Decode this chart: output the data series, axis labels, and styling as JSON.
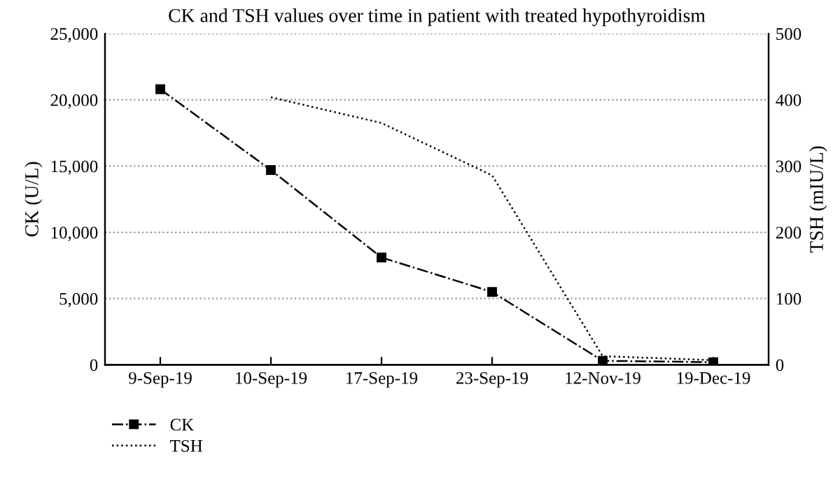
{
  "chart_data": {
    "type": "line",
    "title": "CK and TSH values over time in patient with treated hypothyroidism",
    "ylabel": "CK (U/L)",
    "y2label": "TSH (mIU/L)",
    "categories": [
      "9-Sep-19",
      "10-Sep-19",
      "17-Sep-19",
      "23-Sep-19",
      "12-Nov-19",
      "19-Dec-19"
    ],
    "series": [
      {
        "name": "CK",
        "color": "#000000",
        "marker": "square",
        "line_style": "dashdot",
        "values": [
          20800,
          14700,
          8100,
          5500,
          300,
          200
        ]
      },
      {
        "name": "TSH",
        "color": "#000000",
        "marker": "none",
        "line_style": "dotted",
        "axis": "y2",
        "values": [
          null,
          404,
          365,
          286,
          13,
          7
        ]
      }
    ],
    "ylim": [
      0,
      25000
    ],
    "yticks": [
      {
        "value": 0,
        "label": "0"
      },
      {
        "value": 5000,
        "label": "5,000"
      },
      {
        "value": 10000,
        "label": "10,000"
      },
      {
        "value": 15000,
        "label": "15,000"
      },
      {
        "value": 20000,
        "label": "20,000"
      },
      {
        "value": 25000,
        "label": "25,000"
      }
    ],
    "y2lim": [
      0,
      500
    ],
    "y2ticks": [
      0,
      100,
      200,
      300,
      400,
      500
    ],
    "grid": "y",
    "legend": "bottom left"
  }
}
